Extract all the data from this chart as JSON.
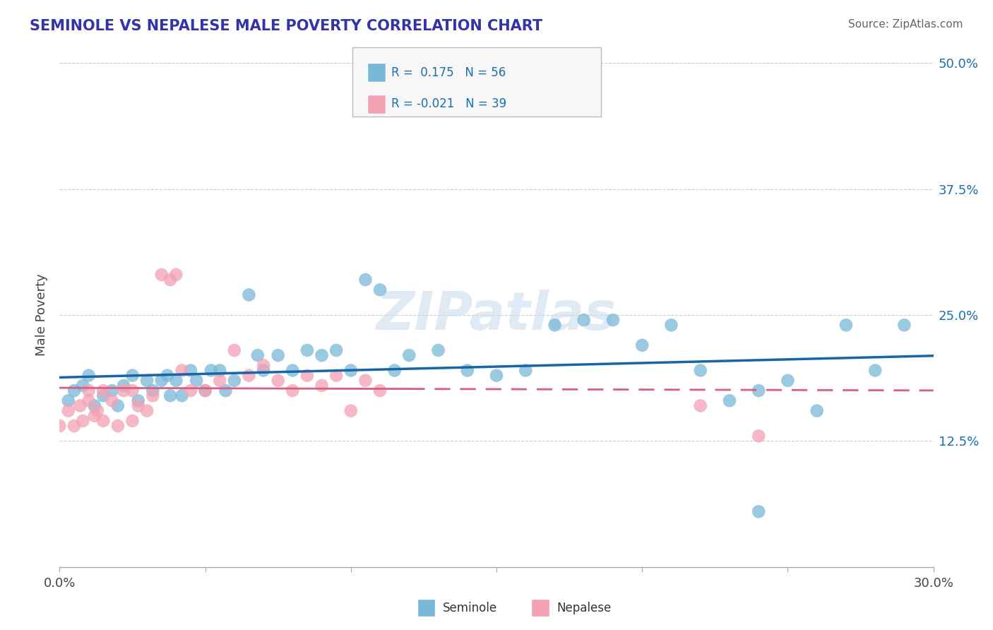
{
  "title": "SEMINOLE VS NEPALESE MALE POVERTY CORRELATION CHART",
  "source": "Source: ZipAtlas.com",
  "ylabel": "Male Poverty",
  "xlim": [
    0.0,
    0.3
  ],
  "ylim": [
    0.0,
    0.5
  ],
  "xtick_positions": [
    0.0,
    0.05,
    0.1,
    0.15,
    0.2,
    0.25,
    0.3
  ],
  "xtick_labels": [
    "0.0%",
    "",
    "",
    "",
    "",
    "",
    "30.0%"
  ],
  "ytick_positions": [
    0.125,
    0.25,
    0.375,
    0.5
  ],
  "ytick_labels": [
    "12.5%",
    "25.0%",
    "37.5%",
    "50.0%"
  ],
  "seminole_R": 0.175,
  "seminole_N": 56,
  "nepalese_R": -0.021,
  "nepalese_N": 39,
  "seminole_color": "#7ab8d9",
  "nepalese_color": "#f4a0b5",
  "seminole_line_color": "#1865a8",
  "nepalese_line_color": "#d95f80",
  "watermark": "ZIPatlas",
  "seminole_x": [
    0.003,
    0.005,
    0.008,
    0.01,
    0.012,
    0.015,
    0.018,
    0.02,
    0.022,
    0.025,
    0.027,
    0.03,
    0.032,
    0.035,
    0.037,
    0.038,
    0.04,
    0.042,
    0.045,
    0.047,
    0.05,
    0.052,
    0.055,
    0.057,
    0.06,
    0.065,
    0.068,
    0.07,
    0.075,
    0.08,
    0.085,
    0.09,
    0.095,
    0.1,
    0.105,
    0.11,
    0.115,
    0.12,
    0.13,
    0.14,
    0.15,
    0.16,
    0.17,
    0.18,
    0.19,
    0.2,
    0.21,
    0.22,
    0.23,
    0.24,
    0.25,
    0.26,
    0.27,
    0.28,
    0.29,
    0.24
  ],
  "seminole_y": [
    0.165,
    0.175,
    0.18,
    0.19,
    0.16,
    0.17,
    0.175,
    0.16,
    0.18,
    0.19,
    0.165,
    0.185,
    0.175,
    0.185,
    0.19,
    0.17,
    0.185,
    0.17,
    0.195,
    0.185,
    0.175,
    0.195,
    0.195,
    0.175,
    0.185,
    0.27,
    0.21,
    0.195,
    0.21,
    0.195,
    0.215,
    0.21,
    0.215,
    0.195,
    0.285,
    0.275,
    0.195,
    0.21,
    0.215,
    0.195,
    0.19,
    0.195,
    0.24,
    0.245,
    0.245,
    0.22,
    0.24,
    0.195,
    0.165,
    0.175,
    0.185,
    0.155,
    0.24,
    0.195,
    0.24,
    0.055
  ],
  "nepalese_x": [
    0.0,
    0.003,
    0.005,
    0.007,
    0.008,
    0.01,
    0.01,
    0.012,
    0.013,
    0.015,
    0.015,
    0.018,
    0.02,
    0.022,
    0.025,
    0.025,
    0.027,
    0.03,
    0.032,
    0.035,
    0.038,
    0.04,
    0.042,
    0.045,
    0.05,
    0.055,
    0.06,
    0.065,
    0.07,
    0.075,
    0.08,
    0.085,
    0.09,
    0.095,
    0.1,
    0.105,
    0.11,
    0.22,
    0.24
  ],
  "nepalese_y": [
    0.14,
    0.155,
    0.14,
    0.16,
    0.145,
    0.165,
    0.175,
    0.15,
    0.155,
    0.145,
    0.175,
    0.165,
    0.14,
    0.175,
    0.145,
    0.175,
    0.16,
    0.155,
    0.17,
    0.29,
    0.285,
    0.29,
    0.195,
    0.175,
    0.175,
    0.185,
    0.215,
    0.19,
    0.2,
    0.185,
    0.175,
    0.19,
    0.18,
    0.19,
    0.155,
    0.185,
    0.175,
    0.16,
    0.13
  ]
}
